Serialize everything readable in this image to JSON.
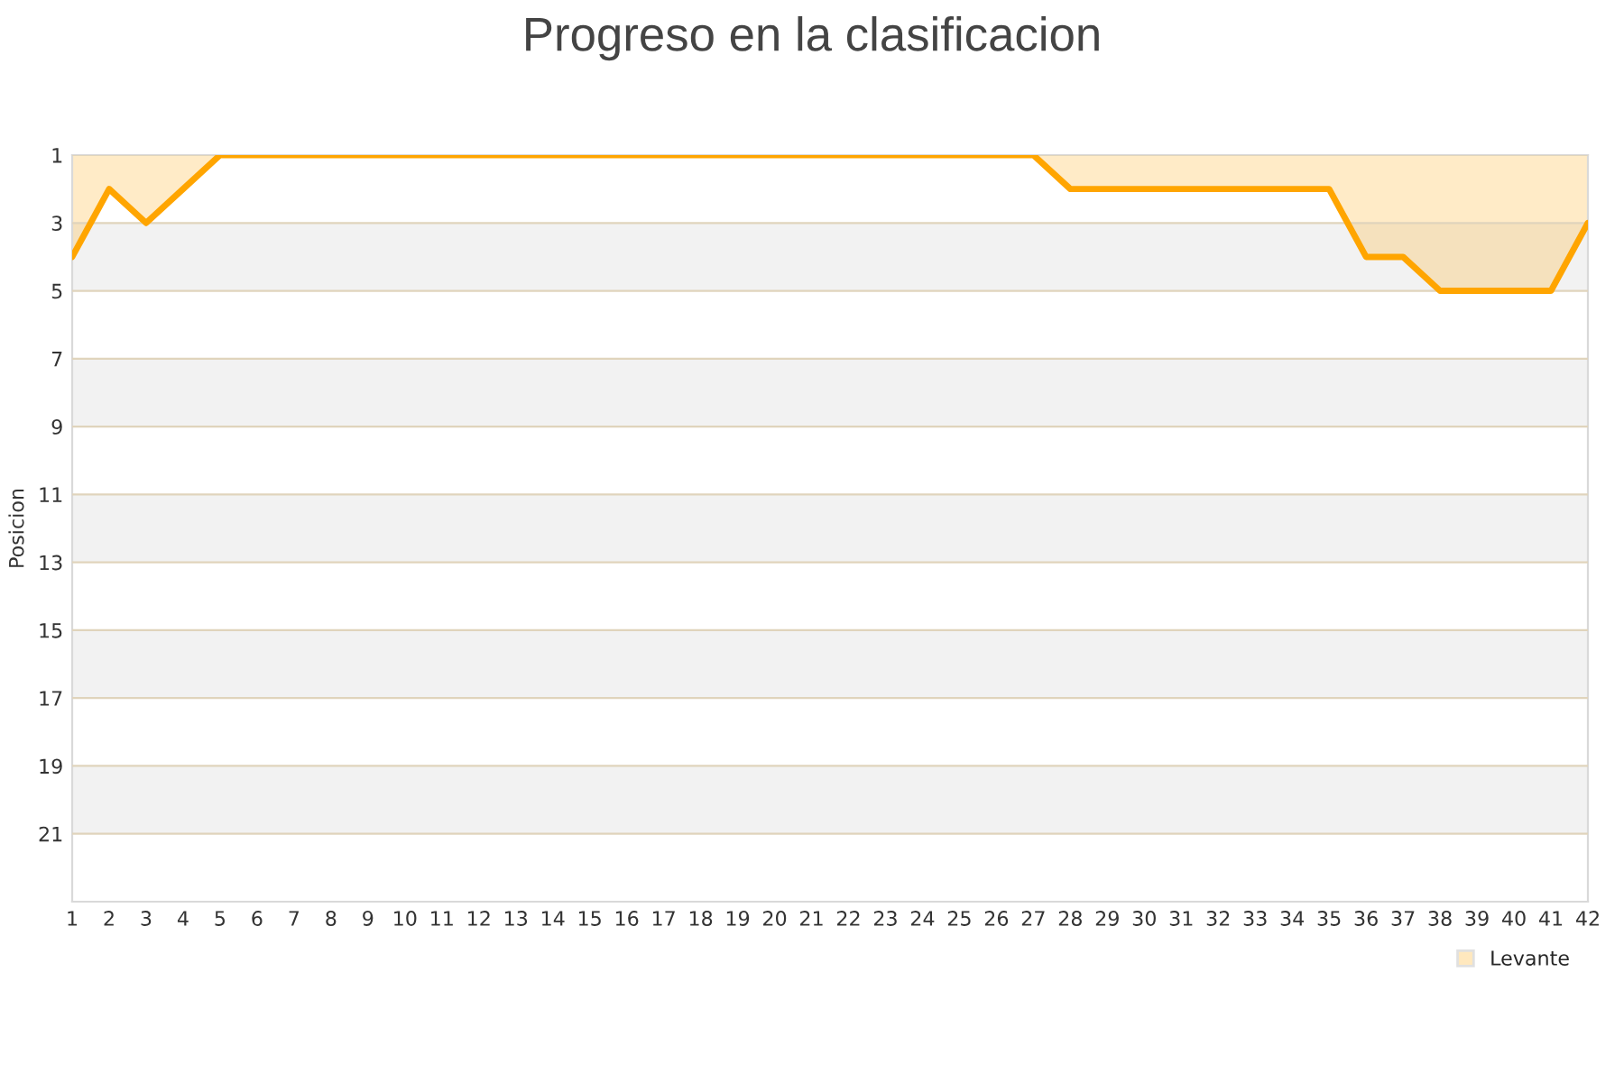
{
  "chart_data": {
    "type": "area",
    "title": "Progreso en la clasificacion",
    "ylabel": "Posicion",
    "x": [
      1,
      2,
      3,
      4,
      5,
      6,
      7,
      8,
      9,
      10,
      11,
      12,
      13,
      14,
      15,
      16,
      17,
      18,
      19,
      20,
      21,
      22,
      23,
      24,
      25,
      26,
      27,
      28,
      29,
      30,
      31,
      32,
      33,
      34,
      35,
      36,
      37,
      38,
      39,
      40,
      41,
      42
    ],
    "series": [
      {
        "name": "Levante",
        "color": "#ffa500",
        "values": [
          4,
          2,
          3,
          2,
          1,
          1,
          1,
          1,
          1,
          1,
          1,
          1,
          1,
          1,
          1,
          1,
          1,
          1,
          1,
          1,
          1,
          1,
          1,
          1,
          1,
          1,
          1,
          2,
          2,
          2,
          2,
          2,
          2,
          2,
          2,
          4,
          4,
          5,
          5,
          5,
          5,
          3
        ]
      }
    ],
    "xlim": [
      1,
      42
    ],
    "xticks": [
      1,
      2,
      3,
      4,
      5,
      6,
      7,
      8,
      9,
      10,
      11,
      12,
      13,
      14,
      15,
      16,
      17,
      18,
      19,
      20,
      21,
      22,
      23,
      24,
      25,
      26,
      27,
      28,
      29,
      30,
      31,
      32,
      33,
      34,
      35,
      36,
      37,
      38,
      39,
      40,
      41,
      42
    ],
    "ylim": [
      23,
      1
    ],
    "yticks": [
      1,
      3,
      5,
      7,
      9,
      11,
      13,
      15,
      17,
      19,
      21
    ],
    "bands": [
      {
        "axis": "y",
        "from": 3,
        "to": 5,
        "color": "#f2f2f2"
      },
      {
        "axis": "y",
        "from": 7,
        "to": 9,
        "color": "#f2f2f2"
      },
      {
        "axis": "y",
        "from": 11,
        "to": 13,
        "color": "#f2f2f2"
      },
      {
        "axis": "y",
        "from": 15,
        "to": 17,
        "color": "#f2f2f2"
      },
      {
        "axis": "y",
        "from": 19,
        "to": 21,
        "color": "#f2f2f2"
      }
    ],
    "grid": "y",
    "legend": "bottom right",
    "marker": "none",
    "line_style": "solid"
  }
}
